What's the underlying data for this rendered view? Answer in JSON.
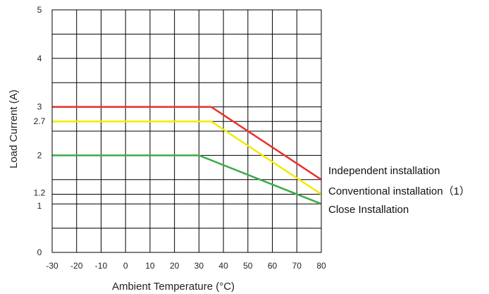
{
  "chart_data": {
    "type": "line",
    "xlabel": "Ambient Temperature (°C)",
    "ylabel": "Load Current (A)",
    "xlim": [
      -30,
      80
    ],
    "ylim": [
      0,
      5
    ],
    "grid": true,
    "x_ticks": [
      "-30",
      "-20",
      "-10",
      "0",
      "10",
      "20",
      "30",
      "40",
      "50",
      "60",
      "70",
      "80"
    ],
    "y_ticks": [
      {
        "label": "0",
        "value": 0
      },
      {
        "label": "1",
        "value": 1
      },
      {
        "label": "1.2",
        "value": 1.2
      },
      {
        "label": "2",
        "value": 2
      },
      {
        "label": "2.7",
        "value": 2.7
      },
      {
        "label": "3",
        "value": 3
      },
      {
        "label": "4",
        "value": 4
      },
      {
        "label": "5",
        "value": 5
      }
    ],
    "legend_placement": "right",
    "series": [
      {
        "name": "Independent installation",
        "color": "#e8312b",
        "x": [
          -30,
          35,
          80
        ],
        "y": [
          3,
          3,
          1.5
        ]
      },
      {
        "name": "Conventional installation（1）",
        "color": "#f2ea00",
        "x": [
          -30,
          35,
          80
        ],
        "y": [
          2.7,
          2.7,
          1.2
        ]
      },
      {
        "name": "Close Installation",
        "color": "#3bab49",
        "x": [
          -30,
          30,
          80
        ],
        "y": [
          2,
          2,
          1
        ]
      }
    ]
  }
}
